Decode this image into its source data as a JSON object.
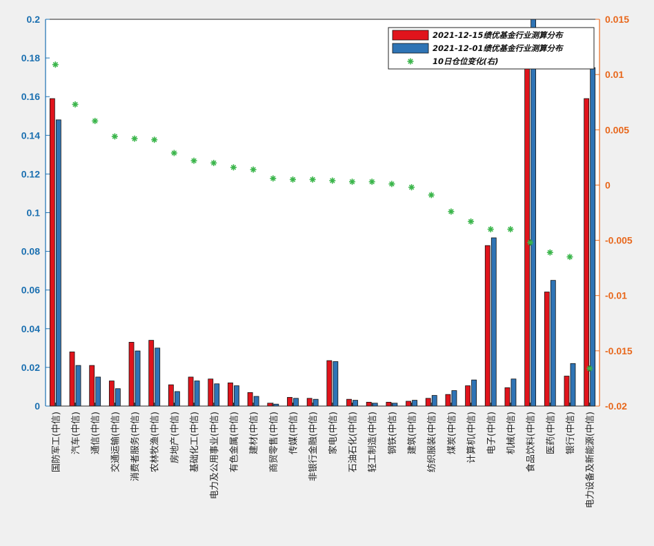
{
  "chart_data": {
    "type": "bar",
    "categories": [
      "国防军工(中信)",
      "汽车(中信)",
      "通信(中信)",
      "交通运输(中信)",
      "消费者服务(中信)",
      "农林牧渔(中信)",
      "房地产(中信)",
      "基础化工(中信)",
      "电力及公用事业(中信)",
      "有色金属(中信)",
      "建材(中信)",
      "商贸零售(中信)",
      "传媒(中信)",
      "非银行金融(中信)",
      "家电(中信)",
      "石油石化(中信)",
      "轻工制造(中信)",
      "钢铁(中信)",
      "建筑(中信)",
      "纺织服装(中信)",
      "煤炭(中信)",
      "计算机(中信)",
      "电子(中信)",
      "机械(中信)",
      "食品饮料(中信)",
      "医药(中信)",
      "银行(中信)",
      "电力设备及新能源(中信)"
    ],
    "series": [
      {
        "name": "2021-12-15绩优基金行业测算分布",
        "color": "#e0141c",
        "axis": "left",
        "values": [
          0.159,
          0.028,
          0.021,
          0.013,
          0.033,
          0.034,
          0.011,
          0.015,
          0.014,
          0.012,
          0.007,
          0.0015,
          0.0045,
          0.004,
          0.0235,
          0.0035,
          0.002,
          0.002,
          0.0025,
          0.004,
          0.006,
          0.0105,
          0.083,
          0.0095,
          0.184,
          0.059,
          0.0155,
          0.159
        ]
      },
      {
        "name": "2021-12-01绩优基金行业测算分布",
        "color": "#2f74b5",
        "axis": "left",
        "values": [
          0.148,
          0.021,
          0.015,
          0.009,
          0.0285,
          0.03,
          0.0075,
          0.013,
          0.0115,
          0.0105,
          0.005,
          0.001,
          0.004,
          0.0035,
          0.023,
          0.003,
          0.0015,
          0.0015,
          0.003,
          0.0055,
          0.008,
          0.0135,
          0.087,
          0.014,
          0.2,
          0.065,
          0.022,
          0.175
        ]
      },
      {
        "name": "10日仓位变化(右)",
        "color": "#3ab54a",
        "axis": "right",
        "type": "scatter",
        "values": [
          0.0109,
          0.0073,
          0.0058,
          0.0044,
          0.0042,
          0.0041,
          0.0029,
          0.0022,
          0.002,
          0.0016,
          0.0014,
          0.0006,
          0.0005,
          0.0005,
          0.0004,
          0.0003,
          0.0003,
          0.0001,
          -0.0002,
          -0.0009,
          -0.0024,
          -0.0033,
          -0.004,
          -0.004,
          -0.0052,
          -0.0061,
          -0.0065,
          -0.0166
        ]
      }
    ],
    "ylim": [
      0,
      0.2
    ],
    "y_ticks": [
      "0",
      "0.02",
      "0.04",
      "0.06",
      "0.08",
      "0.1",
      "0.12",
      "0.14",
      "0.16",
      "0.18",
      "0.2"
    ],
    "y2lim": [
      -0.02,
      0.015
    ],
    "y2_ticks": [
      "-0.02",
      "-0.015",
      "-0.01",
      "-0.005",
      "0",
      "0.005",
      "0.01",
      "0.015"
    ],
    "legend_position": "top-right",
    "grid": false,
    "axis_colors": {
      "left": "#1a6fb0",
      "right": "#e8671b"
    }
  }
}
